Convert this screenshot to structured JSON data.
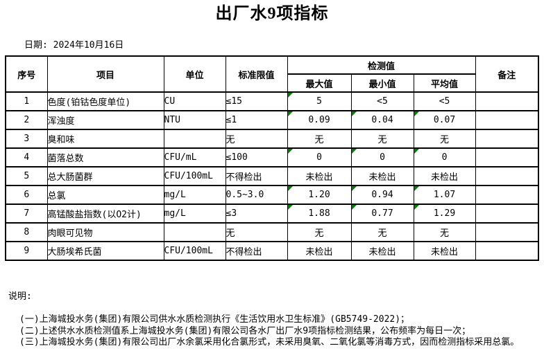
{
  "page": {
    "title": "出厂水9项指标",
    "date_line": "日期: 2024年10月16日"
  },
  "colors": {
    "indicator_green": "#008000",
    "grid_black": "#000000"
  },
  "table": {
    "headers": {
      "no": "序号",
      "item": "项目",
      "unit": "单位",
      "limit": "标准限值",
      "detection": "检测值",
      "max": "最大值",
      "min": "最小值",
      "avg": "平均值",
      "remark": "备注"
    },
    "rows": [
      {
        "no": "1",
        "item": "色度(铂钴色度单位)",
        "unit": "CU",
        "limit": "≤15",
        "max": "5",
        "min": "<5",
        "avg": "<5",
        "remark": "",
        "indicators": [
          "max"
        ]
      },
      {
        "no": "2",
        "item": "浑浊度",
        "unit": "NTU",
        "limit": "≤1",
        "max": "0.09",
        "min": "0.04",
        "avg": "0.07",
        "remark": "",
        "indicators": [
          "max",
          "min",
          "avg"
        ]
      },
      {
        "no": "3",
        "item": "臭和味",
        "unit": "",
        "limit": "无",
        "max": "无",
        "min": "无",
        "avg": "无",
        "remark": "",
        "indicators": []
      },
      {
        "no": "4",
        "item": "菌落总数",
        "unit": "CFU/mL",
        "limit": "≤100",
        "max": "0",
        "min": "0",
        "avg": "0",
        "remark": "",
        "indicators": [
          "max",
          "min",
          "avg"
        ]
      },
      {
        "no": "5",
        "item": "总大肠菌群",
        "unit": "CFU/100mL",
        "limit": "不得检出",
        "max": "未检出",
        "min": "未检出",
        "avg": "未检出",
        "remark": "",
        "indicators": []
      },
      {
        "no": "6",
        "item": "总氯",
        "unit": "mg/L",
        "limit": "0.5~3.0",
        "max": "1.20",
        "min": "0.94",
        "avg": "1.07",
        "remark": "",
        "indicators": [
          "max",
          "min",
          "avg"
        ]
      },
      {
        "no": "7",
        "item": "高锰酸盐指数(以O2计)",
        "unit": "mg/L",
        "limit": "≤3",
        "max": "1.88",
        "min": "0.77",
        "avg": "1.29",
        "remark": "",
        "indicators": [
          "max",
          "min",
          "avg"
        ]
      },
      {
        "no": "8",
        "item": "肉眼可见物",
        "unit": "",
        "limit": "无",
        "max": "无",
        "min": "无",
        "avg": "无",
        "remark": "",
        "indicators": []
      },
      {
        "no": "9",
        "item": "大肠埃希氏菌",
        "unit": "CFU/100mL",
        "limit": "不得检出",
        "max": "未检出",
        "min": "未检出",
        "avg": "未检出",
        "remark": "",
        "indicators": []
      }
    ]
  },
  "notes": {
    "label": "说明:",
    "items": [
      "(一)上海城投水务(集团)有限公司供水水质检测执行《生活饮用水卫生标准》(GB5749-2022)；",
      "(二)上述供水水质检测值系上海城投水务(集团)有限公司各水厂出厂水9项指标检测结果，公布频率为每日一次；",
      "(三)上海城投水务(集团)有限公司出厂水余氯采用化合氯形式，未采用臭氧、二氧化氯等消毒方式，因而检测指标采用总氯。"
    ]
  }
}
